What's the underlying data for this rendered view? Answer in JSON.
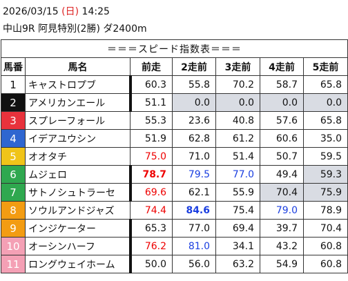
{
  "header": {
    "date": "2026/03/15",
    "weekday": "(日)",
    "time": "14:25",
    "race": "中山9R 阿見特別(2勝) ダ2400m"
  },
  "table": {
    "title": "＝＝＝スピード指数表＝＝＝",
    "columns": [
      "馬番",
      "馬名",
      "前走",
      "2走前",
      "3走前",
      "4走前",
      "5走前"
    ],
    "rows": [
      [
        "1",
        "キャストロプブ",
        "60.3",
        "55.8",
        "70.2",
        "58.7",
        "65.8"
      ],
      [
        "2",
        "アメリカンエール",
        "51.1",
        "0.0",
        "0.0",
        "0.0",
        "0.0"
      ],
      [
        "3",
        "スプレーフォール",
        "55.3",
        "23.6",
        "40.8",
        "57.6",
        "65.8"
      ],
      [
        "4",
        "イデアユウシン",
        "51.9",
        "62.8",
        "61.2",
        "60.6",
        "35.0"
      ],
      [
        "5",
        "オオタチ",
        "75.0",
        "71.0",
        "51.4",
        "50.7",
        "59.5"
      ],
      [
        "6",
        "ムジェロ",
        "78.7",
        "79.5",
        "77.0",
        "49.4",
        "59.3"
      ],
      [
        "7",
        "サトノシュトラーセ",
        "69.6",
        "62.1",
        "55.9",
        "70.4",
        "75.9"
      ],
      [
        "8",
        "ソウルアンドジャズ",
        "74.4",
        "84.6",
        "75.4",
        "79.0",
        "78.9"
      ],
      [
        "9",
        "インジケーター",
        "65.3",
        "77.0",
        "69.4",
        "39.7",
        "70.4"
      ],
      [
        "10",
        "オーシンハーフ",
        "76.2",
        "81.0",
        "34.1",
        "43.2",
        "60.8"
      ],
      [
        "11",
        "ロングウェイホーム",
        "50.0",
        "56.0",
        "63.2",
        "54.9",
        "60.8"
      ]
    ]
  }
}
